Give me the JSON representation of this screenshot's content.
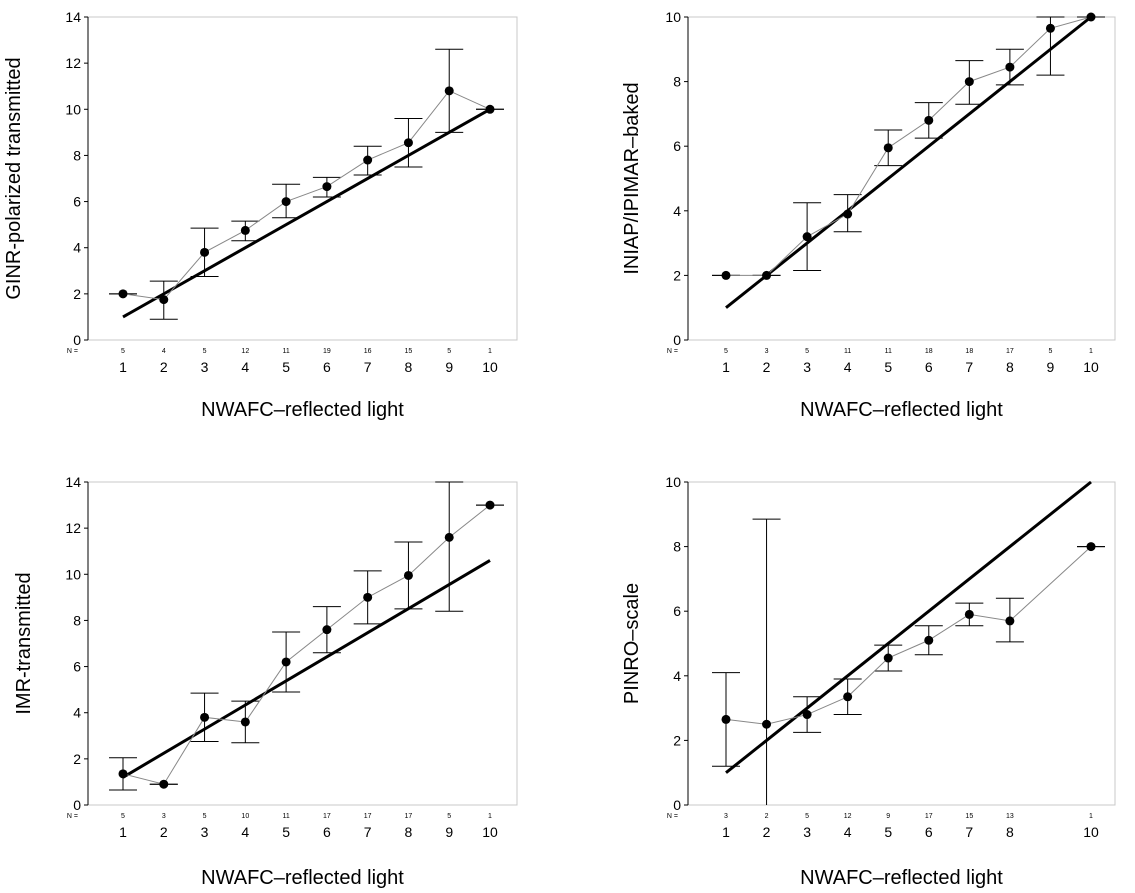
{
  "chart_data": [
    {
      "type": "line",
      "ylabel": "GINR-polarized transmitted",
      "xlabel": "NWAFC–reflected light",
      "n_prefix": "N =",
      "categories": [
        "1",
        "2",
        "3",
        "4",
        "5",
        "6",
        "7",
        "8",
        "9",
        "10"
      ],
      "n": [
        "5",
        "4",
        "5",
        "12",
        "11",
        "19",
        "16",
        "15",
        "5",
        "1"
      ],
      "ylim": [
        0,
        14
      ],
      "yticks": [
        0,
        2,
        4,
        6,
        8,
        10,
        12,
        14
      ],
      "means": [
        2.0,
        1.75,
        3.8,
        4.75,
        6.0,
        6.65,
        7.8,
        8.55,
        10.8,
        10.0
      ],
      "err_low": [
        2.0,
        0.9,
        2.75,
        4.3,
        5.3,
        6.2,
        7.15,
        7.5,
        9.0,
        10.0
      ],
      "err_high": [
        2.0,
        2.55,
        4.85,
        5.15,
        6.75,
        7.05,
        8.4,
        9.6,
        12.6,
        10.0
      ],
      "reference_line": {
        "x": [
          1,
          10
        ],
        "y": [
          1,
          10
        ]
      }
    },
    {
      "type": "line",
      "ylabel": "INIAP/IPIMAR–baked",
      "xlabel": "NWAFC–reflected light",
      "n_prefix": "N =",
      "categories": [
        "1",
        "2",
        "3",
        "4",
        "5",
        "6",
        "7",
        "8",
        "9",
        "10"
      ],
      "n": [
        "5",
        "3",
        "5",
        "11",
        "11",
        "18",
        "18",
        "17",
        "5",
        "1"
      ],
      "ylim": [
        0,
        10
      ],
      "yticks": [
        0,
        2,
        4,
        6,
        8,
        10
      ],
      "means": [
        2.0,
        2.0,
        3.2,
        3.9,
        5.95,
        6.8,
        8.0,
        8.45,
        9.65,
        10.0
      ],
      "err_low": [
        2.0,
        2.0,
        2.15,
        3.35,
        5.4,
        6.25,
        7.3,
        7.9,
        8.2,
        10.0
      ],
      "err_high": [
        2.0,
        2.0,
        4.25,
        4.5,
        6.5,
        7.35,
        8.65,
        9.0,
        10.0,
        10.0
      ],
      "reference_line": {
        "x": [
          1,
          10
        ],
        "y": [
          1,
          10
        ]
      }
    },
    {
      "type": "line",
      "ylabel": "IMR-transmitted",
      "xlabel": "NWAFC–reflected light",
      "n_prefix": "N =",
      "categories": [
        "1",
        "2",
        "3",
        "4",
        "5",
        "6",
        "7",
        "8",
        "9",
        "10"
      ],
      "n": [
        "5",
        "3",
        "5",
        "10",
        "11",
        "17",
        "17",
        "17",
        "5",
        "1"
      ],
      "ylim": [
        0,
        14
      ],
      "yticks": [
        0,
        2,
        4,
        6,
        8,
        10,
        12,
        14
      ],
      "means": [
        1.35,
        0.9,
        3.8,
        3.6,
        6.2,
        7.6,
        9.0,
        9.95,
        11.6,
        13.0
      ],
      "err_low": [
        0.65,
        0.9,
        2.75,
        2.7,
        4.9,
        6.6,
        7.85,
        8.5,
        8.4,
        13.0
      ],
      "err_high": [
        2.05,
        0.9,
        4.85,
        4.5,
        7.5,
        8.6,
        10.15,
        11.4,
        14.0,
        13.0
      ],
      "reference_line": {
        "x": [
          1,
          10
        ],
        "y": [
          1.2,
          10.6
        ]
      }
    },
    {
      "type": "line",
      "ylabel": "PINRO–scale",
      "xlabel": "NWAFC–reflected light",
      "n_prefix": "N =",
      "categories": [
        "1",
        "2",
        "3",
        "4",
        "5",
        "6",
        "7",
        "8",
        "10"
      ],
      "n": [
        "3",
        "2",
        "5",
        "12",
        "9",
        "17",
        "15",
        "13",
        "1"
      ],
      "ylim": [
        0,
        10
      ],
      "yticks": [
        0,
        2,
        4,
        6,
        8,
        10
      ],
      "means": [
        2.65,
        2.5,
        2.8,
        3.35,
        4.55,
        5.1,
        5.9,
        5.7,
        8.0
      ],
      "err_low": [
        1.2,
        0.0,
        2.25,
        2.8,
        4.15,
        4.65,
        5.55,
        5.05,
        8.0
      ],
      "err_high": [
        4.1,
        8.85,
        3.35,
        3.9,
        4.95,
        5.55,
        6.25,
        6.4,
        8.0
      ],
      "reference_line": {
        "x": [
          1,
          10
        ],
        "y": [
          1,
          10
        ]
      }
    }
  ]
}
